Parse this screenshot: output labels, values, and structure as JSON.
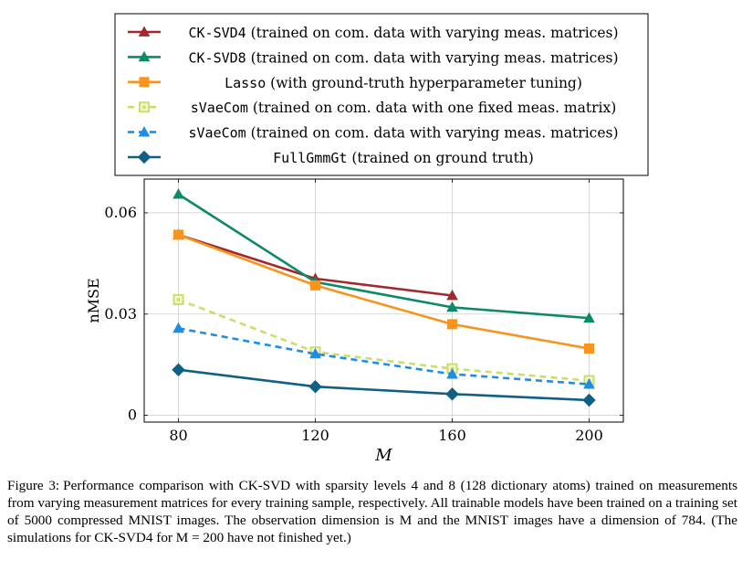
{
  "chart_data": {
    "type": "line",
    "xlabel": "M",
    "ylabel": "nMSE",
    "x": [
      80,
      120,
      160,
      200
    ],
    "xticks": [
      "80",
      "120",
      "160",
      "200"
    ],
    "yticks": [
      "0",
      "0.03",
      "0.06"
    ],
    "xlim": [
      70,
      210
    ],
    "ylim": [
      -0.002,
      0.07
    ],
    "grid": true,
    "legend_position": "top",
    "series": [
      {
        "method": "CK-SVD4",
        "note": " (trained on com. data with varying meas. matrices)",
        "values": [
          0.0535,
          0.0405,
          0.0355,
          null
        ],
        "color": "#a3282b",
        "marker": "triangle",
        "dashed": false
      },
      {
        "method": "CK-SVD8",
        "note": " (trained on com. data with varying meas. matrices)",
        "values": [
          0.0655,
          0.0395,
          0.032,
          0.0288
        ],
        "color": "#0c8a68",
        "marker": "triangle",
        "dashed": false
      },
      {
        "method": "Lasso",
        "note": " (with ground-truth hyperparameter tuning)",
        "values": [
          0.0535,
          0.0385,
          0.027,
          0.0198
        ],
        "color": "#f7941d",
        "marker": "square",
        "dashed": false
      },
      {
        "method": "sVaeCom",
        "note": " (trained on com. data with one fixed meas. matrix)",
        "values": [
          0.0343,
          0.0188,
          0.0138,
          0.0103
        ],
        "color": "#c9df6a",
        "marker": "square-open",
        "dashed": true
      },
      {
        "method": "sVaeCom",
        "note": " (trained on com. data with varying meas. matrices)",
        "values": [
          0.0258,
          0.0182,
          0.0122,
          0.0092
        ],
        "color": "#1c8ee9",
        "marker": "triangle",
        "dashed": true
      },
      {
        "method": "FullGmmGt",
        "note": " (trained on ground truth)",
        "values": [
          0.0135,
          0.0085,
          0.0063,
          0.0045
        ],
        "color": "#0f6083",
        "marker": "diamond",
        "dashed": false
      }
    ]
  },
  "caption": {
    "label": "Figure 3:",
    "text": "Performance comparison with CK-SVD with sparsity levels 4 and 8 (128 dictionary atoms) trained on measurements from varying measurement matrices for every training sample, respectively. All trainable models have been trained on a training set of 5000 compressed MNIST images. The observation dimension is M and the MNIST images have a dimension of 784. (The simulations for CK-SVD4 for M = 200 have not finished yet.)"
  }
}
